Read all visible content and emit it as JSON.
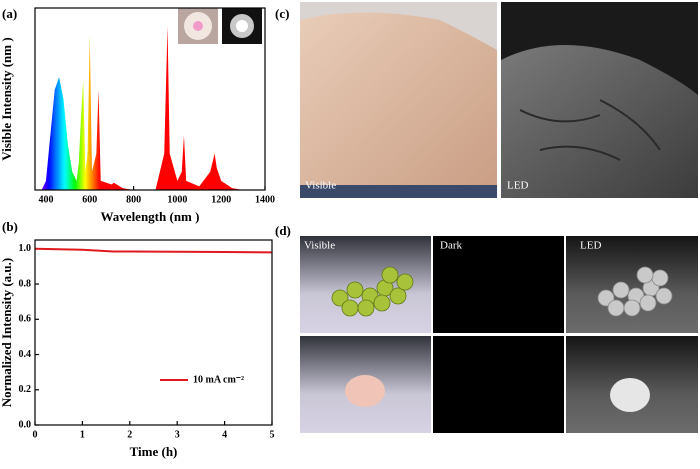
{
  "chart_data": [
    {
      "type": "area",
      "panel_label": "(a)",
      "x_label": "Wavelength (nm )",
      "y_label": "Visible Intensity (nm )",
      "x": [
        380,
        400,
        420,
        440,
        460,
        480,
        500,
        520,
        540,
        550,
        560,
        570,
        580,
        590,
        600,
        610,
        630,
        640,
        650,
        700,
        710,
        750,
        800,
        900,
        940,
        955,
        965,
        1000,
        1020,
        1030,
        1040,
        1100,
        1150,
        1170,
        1180,
        1200,
        1250,
        1300,
        1400
      ],
      "values": [
        0,
        0.05,
        0.3,
        0.55,
        0.62,
        0.5,
        0.25,
        0.1,
        0.05,
        0.15,
        0.4,
        0.6,
        0.1,
        0.2,
        0.85,
        0.1,
        0.2,
        0.55,
        0.05,
        0.03,
        0.04,
        0.01,
        0,
        0,
        0.2,
        0.9,
        0.2,
        0.05,
        0.1,
        0.3,
        0.05,
        0.02,
        0.1,
        0.2,
        0.12,
        0.05,
        0.01,
        0,
        0
      ],
      "xlim": [
        350,
        1400
      ],
      "ylim": [
        0,
        1
      ],
      "xticks": [
        400,
        600,
        800,
        1000,
        1200,
        1400
      ]
    },
    {
      "type": "line",
      "panel_label": "(b)",
      "x_label": "Time (h)",
      "y_label": "Normalized Intensity (a.u.)",
      "x": [
        0,
        1,
        1.65,
        2,
        3,
        4,
        5
      ],
      "series": [
        {
          "name": "10 mA cm⁻²",
          "color": "#e0191e",
          "values": [
            1.0,
            0.995,
            0.985,
            0.985,
            0.983,
            0.982,
            0.98
          ]
        }
      ],
      "xlim": [
        0,
        5
      ],
      "ylim": [
        0,
        1.05
      ],
      "xticks": [
        0,
        1,
        2,
        3,
        4,
        5
      ],
      "yticks": [
        {
          "value": 0,
          "label": "0.0"
        },
        {
          "value": 0.2,
          "label": "0.2"
        },
        {
          "value": 0.4,
          "label": "0.4"
        },
        {
          "value": 0.6,
          "label": "0.6"
        },
        {
          "value": 0.8,
          "label": "0.8"
        },
        {
          "value": 1.0,
          "label": "1.0"
        }
      ]
    }
  ],
  "photos": {
    "c": {
      "label": "(c)",
      "captions": [
        "Visible",
        "LED"
      ]
    },
    "d": {
      "label": "(d)",
      "captions": [
        "Visible",
        "Dark",
        "LED"
      ]
    }
  }
}
